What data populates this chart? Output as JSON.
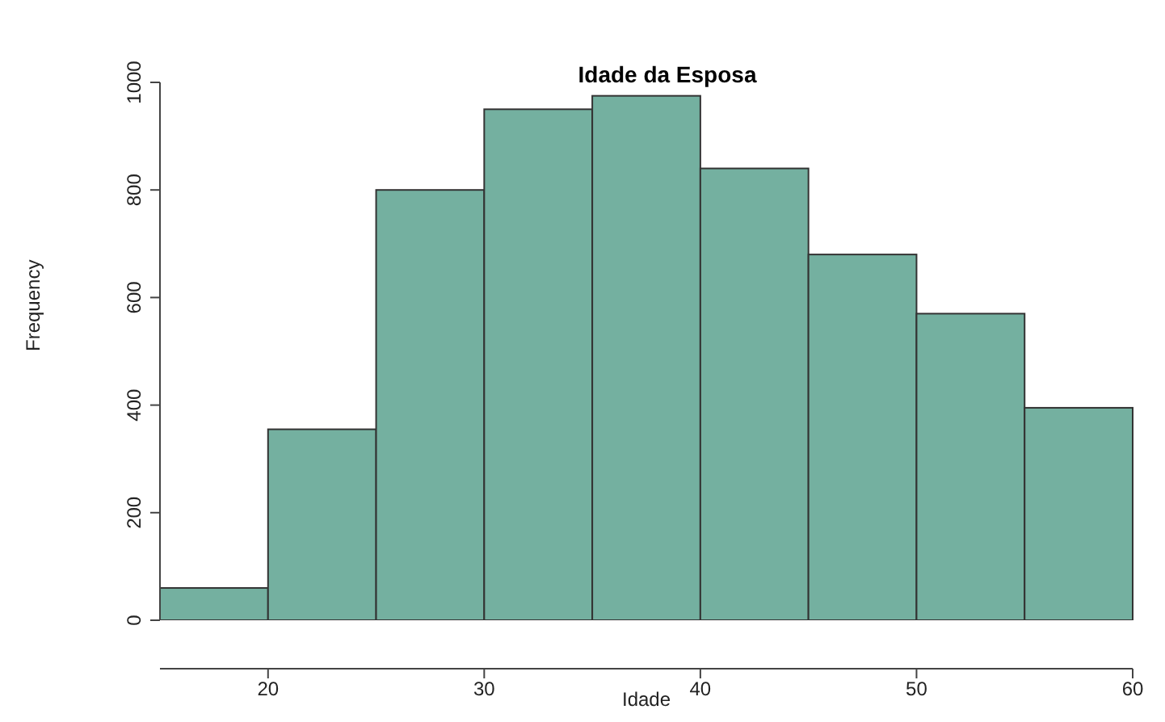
{
  "chart_data": {
    "type": "histogram",
    "title": "Idade da Esposa",
    "xlabel": "Idade",
    "ylabel": "Frequency",
    "bins": [
      15,
      20,
      25,
      30,
      35,
      40,
      45,
      50,
      55,
      60
    ],
    "values": [
      60,
      355,
      800,
      950,
      975,
      840,
      680,
      570,
      395
    ],
    "color": "#74b0a0",
    "xlim": [
      15,
      60
    ],
    "xticks": [
      20,
      30,
      40,
      50,
      60
    ],
    "ylim": [
      0,
      1000
    ],
    "yticks": [
      0,
      200,
      400,
      600,
      800,
      1000
    ],
    "grid": false
  }
}
